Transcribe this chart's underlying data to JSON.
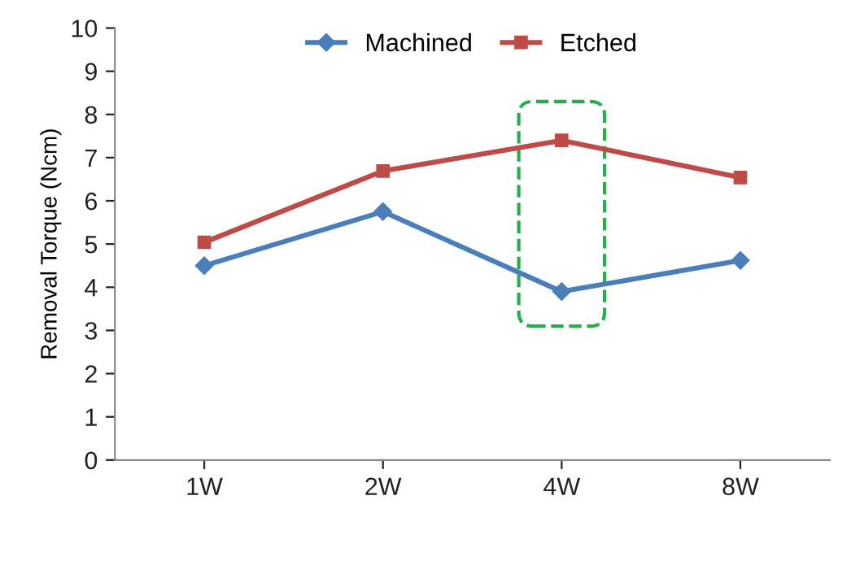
{
  "chart_data": {
    "type": "line",
    "ylabel": "Removal Torque (Ncm)",
    "categories": [
      "1W",
      "2W",
      "4W",
      "8W"
    ],
    "series": [
      {
        "name": "Machined",
        "color": "#4a7ebb",
        "marker": "diamond",
        "values": [
          4.5,
          5.75,
          3.9,
          4.62
        ]
      },
      {
        "name": "Etched",
        "color": "#be4b48",
        "marker": "square",
        "values": [
          5.04,
          6.69,
          7.4,
          6.54
        ]
      }
    ],
    "ylim": [
      0,
      10
    ],
    "yticks": [
      0,
      1,
      2,
      3,
      4,
      5,
      6,
      7,
      8,
      9,
      10
    ],
    "legend": "top",
    "grid": false
  }
}
